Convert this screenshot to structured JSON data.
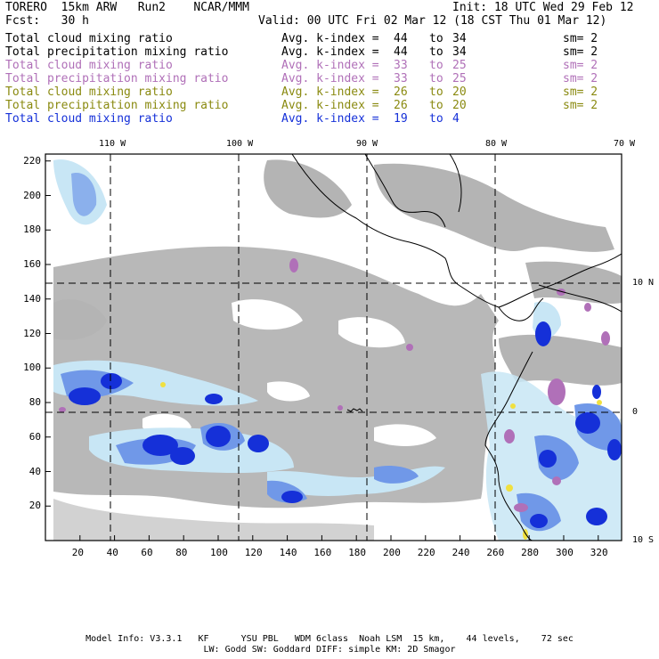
{
  "header": {
    "model": "TORERO  15km ARW   Run2    NCAR/MMM",
    "init": "Init: 18 UTC Wed 29 Feb 12",
    "fcst": "Fcst:   30 h",
    "valid": "Valid: 00 UTC Fri 02 Mar 12 (18 CST Thu 01 Mar 12)"
  },
  "legend": [
    {
      "name": "Total cloud mixing ratio",
      "kidx": "Avg. k-index =",
      "hi": "44",
      "to": "to",
      "lo": "34",
      "sm": "sm= 2",
      "color": "#000000"
    },
    {
      "name": "Total precipitation mixing ratio",
      "kidx": "Avg. k-index =",
      "hi": "44",
      "to": "to",
      "lo": "34",
      "sm": "sm= 2",
      "color": "#000000"
    },
    {
      "name": "Total cloud mixing ratio",
      "kidx": "Avg. k-index =",
      "hi": "33",
      "to": "to",
      "lo": "25",
      "sm": "sm= 2",
      "color": "#b070b8"
    },
    {
      "name": "Total precipitation mixing ratio",
      "kidx": "Avg. k-index =",
      "hi": "33",
      "to": "to",
      "lo": "25",
      "sm": "sm= 2",
      "color": "#b070b8"
    },
    {
      "name": "Total cloud mixing ratio",
      "kidx": "Avg. k-index =",
      "hi": "26",
      "to": "to",
      "lo": "20",
      "sm": "sm= 2",
      "color": "#8a8a10"
    },
    {
      "name": "Total precipitation mixing ratio",
      "kidx": "Avg. k-index =",
      "hi": "26",
      "to": "to",
      "lo": "20",
      "sm": "sm= 2",
      "color": "#8a8a10"
    },
    {
      "name": "Total cloud mixing ratio",
      "kidx": "Avg. k-index =",
      "hi": "19",
      "to": "to",
      "lo": "4",
      "sm": "",
      "color": "#1530d8"
    }
  ],
  "map": {
    "lon_labels": [
      "110 W",
      "100 W",
      "90 W",
      "80 W",
      "70 W"
    ],
    "lat_labels": [
      "10 N",
      "0",
      "10 S"
    ],
    "x_ticks": [
      "20",
      "40",
      "60",
      "80",
      "100",
      "120",
      "140",
      "160",
      "180",
      "200",
      "220",
      "240",
      "260",
      "280",
      "300",
      "320"
    ],
    "y_ticks": [
      "220",
      "200",
      "180",
      "160",
      "140",
      "120",
      "100",
      "80",
      "60",
      "40",
      "20"
    ],
    "colors": {
      "cloud_gray": "#b4b4b4",
      "light_blue": "#c8e6f5",
      "mid_blue": "#7098e8",
      "dark_blue": "#1530d8",
      "purple": "#b070b8",
      "yellow": "#f0e040"
    }
  },
  "footer": {
    "line1": "Model Info: V3.3.1   KF      YSU PBL   WDM 6class  Noah LSM  15 km,    44 levels,    72 sec",
    "line2": "LW: Godd SW: Goddard DIFF: simple KM: 2D Smagor"
  }
}
